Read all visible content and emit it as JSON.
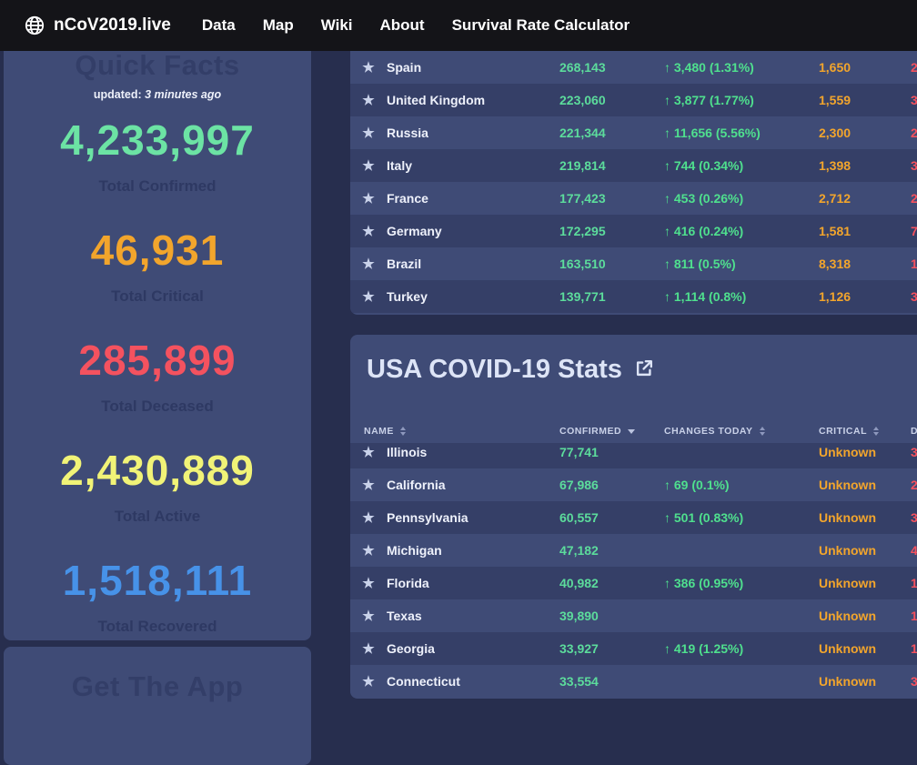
{
  "colors": {
    "confirmed_green": "#5cdc9c",
    "change_green": "#4fe08e",
    "critical_orange": "#f2a52c",
    "deceased_red": "#f4525f"
  },
  "navbar": {
    "brand": "nCoV2019.live",
    "links": [
      {
        "label": "Data"
      },
      {
        "label": "Map"
      },
      {
        "label": "Wiki"
      },
      {
        "label": "About"
      },
      {
        "label": "Survival Rate Calculator"
      }
    ]
  },
  "quick_facts": {
    "title": "Quick Facts",
    "updated_label": "updated:",
    "updated_value": "3 minutes ago",
    "stats": [
      {
        "value": "4,233,997",
        "label": "Total Confirmed",
        "color": "#6ce3a4"
      },
      {
        "value": "46,931",
        "label": "Total Critical",
        "color": "#f2a52c"
      },
      {
        "value": "285,899",
        "label": "Total Deceased",
        "color": "#f4525f"
      },
      {
        "value": "2,430,889",
        "label": "Total Active",
        "color": "#f1f377"
      },
      {
        "value": "1,518,111",
        "label": "Total Recovered",
        "color": "#4792e8"
      }
    ]
  },
  "app_card": {
    "title": "Get The App"
  },
  "world_table": {
    "rows": [
      {
        "name": "Spain",
        "confirmed": "268,143",
        "change": "↑ 3,480 (1.31%)",
        "critical": "1,650",
        "deceased": "2"
      },
      {
        "name": "United Kingdom",
        "confirmed": "223,060",
        "change": "↑ 3,877 (1.77%)",
        "critical": "1,559",
        "deceased": "3"
      },
      {
        "name": "Russia",
        "confirmed": "221,344",
        "change": "↑ 11,656 (5.56%)",
        "critical": "2,300",
        "deceased": "2"
      },
      {
        "name": "Italy",
        "confirmed": "219,814",
        "change": "↑ 744 (0.34%)",
        "critical": "1,398",
        "deceased": "3"
      },
      {
        "name": "France",
        "confirmed": "177,423",
        "change": "↑ 453 (0.26%)",
        "critical": "2,712",
        "deceased": "2"
      },
      {
        "name": "Germany",
        "confirmed": "172,295",
        "change": "↑ 416 (0.24%)",
        "critical": "1,581",
        "deceased": "7"
      },
      {
        "name": "Brazil",
        "confirmed": "163,510",
        "change": "↑ 811 (0.5%)",
        "critical": "8,318",
        "deceased": "1"
      },
      {
        "name": "Turkey",
        "confirmed": "139,771",
        "change": "↑ 1,114 (0.8%)",
        "critical": "1,126",
        "deceased": "3"
      }
    ]
  },
  "usa_section": {
    "title": "USA COVID-19 Stats",
    "headers": [
      {
        "label": "NAME",
        "sort": "none"
      },
      {
        "label": "CONFIRMED",
        "sort": "desc"
      },
      {
        "label": "CHANGES TODAY",
        "sort": "none"
      },
      {
        "label": "CRITICAL",
        "sort": "none"
      },
      {
        "label": "DECEASED",
        "sort": "none"
      }
    ],
    "rows": [
      {
        "name": "Illinois",
        "confirmed": "77,741",
        "change": "",
        "critical": "Unknown",
        "deceased": "3"
      },
      {
        "name": "California",
        "confirmed": "67,986",
        "change": "↑ 69 (0.1%)",
        "critical": "Unknown",
        "deceased": "2"
      },
      {
        "name": "Pennsylvania",
        "confirmed": "60,557",
        "change": "↑ 501 (0.83%)",
        "critical": "Unknown",
        "deceased": "3"
      },
      {
        "name": "Michigan",
        "confirmed": "47,182",
        "change": "",
        "critical": "Unknown",
        "deceased": "4"
      },
      {
        "name": "Florida",
        "confirmed": "40,982",
        "change": "↑ 386 (0.95%)",
        "critical": "Unknown",
        "deceased": "1"
      },
      {
        "name": "Texas",
        "confirmed": "39,890",
        "change": "",
        "critical": "Unknown",
        "deceased": "1"
      },
      {
        "name": "Georgia",
        "confirmed": "33,927",
        "change": "↑ 419 (1.25%)",
        "critical": "Unknown",
        "deceased": "1"
      },
      {
        "name": "Connecticut",
        "confirmed": "33,554",
        "change": "",
        "critical": "Unknown",
        "deceased": "3"
      }
    ]
  }
}
